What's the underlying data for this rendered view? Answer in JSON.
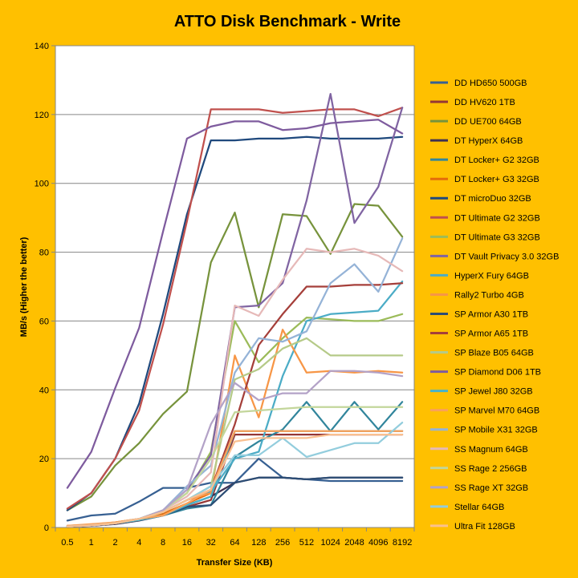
{
  "chart_data": {
    "type": "line",
    "title": "ATTO Disk Benchmark - Write",
    "xlabel": "Transfer Size (KB)",
    "ylabel": "MB/s (Higher the better)",
    "ylim": [
      0,
      140
    ],
    "yticks": [
      0,
      20,
      40,
      60,
      80,
      100,
      120,
      140
    ],
    "grid": true,
    "legend_position": "right",
    "background_color": "#FFC000",
    "plot_background_color": "#FFFFFF",
    "categories": [
      "0.5",
      "1",
      "2",
      "4",
      "8",
      "16",
      "32",
      "64",
      "128",
      "256",
      "512",
      "1024",
      "2048",
      "4096",
      "8192"
    ],
    "series": [
      {
        "name": "DD HD650 500GB",
        "color": "#376092",
        "values": [
          2,
          3.5,
          4,
          7.5,
          11.5,
          11.5,
          13,
          13,
          20,
          14.5,
          14,
          13.5,
          13.5,
          13.5,
          13.5
        ]
      },
      {
        "name": "DD HV620 1TB",
        "color": "#953735",
        "values": [
          0.3,
          0.6,
          1.2,
          2.2,
          3.6,
          6,
          8,
          27,
          27,
          27,
          27,
          27,
          27,
          27,
          27
        ]
      },
      {
        "name": "DD UE700 64GB",
        "color": "#77933C",
        "values": [
          5,
          9,
          18,
          24.5,
          33,
          39.5,
          77,
          91.5,
          64,
          91,
          90.5,
          79.5,
          94,
          93.5,
          84.5
        ]
      },
      {
        "name": "DT HyperX 64GB",
        "color": "#3F3151",
        "values": [
          0.2,
          0.5,
          1,
          2,
          3.5,
          6.5,
          9,
          13,
          14.5,
          14.5,
          14,
          14.5,
          14.5,
          14.5,
          14.5
        ]
      },
      {
        "name": "DT Locker+ G2 32GB",
        "color": "#31859C",
        "values": [
          0.3,
          0.6,
          1.2,
          2.2,
          3.5,
          5.5,
          6.5,
          20.5,
          25,
          28.5,
          36.5,
          28,
          36.5,
          28.5,
          36.5
        ]
      },
      {
        "name": "DT Locker+ G3 32GB",
        "color": "#E46C0A",
        "values": [
          0.5,
          0.8,
          1.5,
          2.5,
          4,
          7,
          10,
          28,
          28,
          28,
          28,
          28,
          28,
          28,
          28
        ]
      },
      {
        "name": "DT microDuo 32GB",
        "color": "#1F497D",
        "values": [
          5,
          10,
          20,
          36,
          62,
          91,
          112.5,
          112.5,
          113,
          113,
          113.5,
          113,
          113,
          113,
          113.5
        ]
      },
      {
        "name": "DT Ultimate G2 32GB",
        "color": "#C0504D",
        "values": [
          5.5,
          10,
          20,
          34,
          59,
          89,
          121.5,
          121.5,
          121.5,
          120.5,
          121,
          121.5,
          121.5,
          119.5,
          122
        ]
      },
      {
        "name": "DT Ultimate G3 32GB",
        "color": "#9BBB59",
        "values": [
          0.3,
          0.6,
          1.2,
          2.5,
          5,
          10,
          22,
          60,
          48,
          55,
          61,
          60.5,
          60,
          60,
          62
        ]
      },
      {
        "name": "DT Vault Privacy 3.0 32GB",
        "color": "#8064A2",
        "values": [
          0.3,
          0.6,
          1.2,
          2.5,
          5,
          11,
          21,
          64,
          64.5,
          71,
          95,
          126,
          88.5,
          99,
          122
        ]
      },
      {
        "name": "HyperX Fury 64GB",
        "color": "#4BACC6",
        "values": [
          0.3,
          0.6,
          1.2,
          2.5,
          4.5,
          8,
          10.5,
          20,
          22,
          44,
          60,
          62,
          62.5,
          63,
          71.5
        ]
      },
      {
        "name": "Rally2 Turbo 4GB",
        "color": "#F79646",
        "values": [
          0.5,
          0.8,
          1.5,
          2.5,
          4.5,
          8,
          10,
          50,
          32,
          57.5,
          45,
          45.5,
          45,
          45.5,
          45
        ]
      },
      {
        "name": "SP Armor A30 1TB",
        "color": "#2C4D75",
        "values": [
          0.3,
          0.6,
          1.2,
          2.2,
          3.5,
          6,
          6.5,
          13,
          14.5,
          14.5,
          14,
          14.5,
          14.5,
          14.5,
          14.5
        ]
      },
      {
        "name": "SP Armor A65 1TB",
        "color": "#A53F3A",
        "values": [
          0.3,
          0.6,
          1.2,
          2.5,
          4.5,
          8,
          11,
          30,
          53,
          62,
          70,
          70,
          70.5,
          70.5,
          71
        ]
      },
      {
        "name": "SP Blaze B05 64GB",
        "color": "#B5CA88",
        "values": [
          0.3,
          0.6,
          1.2,
          2.2,
          4.5,
          8,
          12,
          43,
          46,
          52,
          55,
          50,
          50,
          50,
          50
        ]
      },
      {
        "name": "SP Diamond D06 1TB",
        "color": "#7E5B9E",
        "values": [
          11.5,
          22,
          40.5,
          58,
          86,
          113,
          116.5,
          118,
          118,
          115.5,
          116,
          117.5,
          118,
          118.5,
          114.5
        ]
      },
      {
        "name": "SP Jewel J80 32GB",
        "color": "#48B2C9",
        "values": [
          0.3,
          0.6,
          1.2,
          2.2,
          3.5,
          6.5,
          9,
          28,
          28,
          28,
          28,
          28,
          28,
          28,
          28
        ]
      },
      {
        "name": "SP Marvel M70 64GB",
        "color": "#F9A15A",
        "values": [
          0.5,
          1,
          1.5,
          2.5,
          3.5,
          7,
          11,
          28,
          28,
          28,
          28,
          28,
          28,
          28,
          28
        ]
      },
      {
        "name": "SP Mobile X31 32GB",
        "color": "#95B3D7",
        "values": [
          0.3,
          0.6,
          1.2,
          2.5,
          5,
          12,
          18,
          45,
          55,
          54,
          57,
          71,
          76.5,
          68.5,
          84
        ]
      },
      {
        "name": "SS Magnum 64GB",
        "color": "#E6B9B8",
        "values": [
          0.3,
          0.6,
          1.2,
          2.5,
          5,
          9,
          16,
          64.5,
          61.5,
          72,
          81,
          80,
          81,
          79,
          74.5
        ]
      },
      {
        "name": "SS Rage 2 256GB",
        "color": "#C3D69B",
        "values": [
          0.3,
          0.6,
          1.2,
          2.5,
          5,
          10,
          20,
          33.5,
          34,
          34.5,
          35,
          35,
          35,
          35,
          35
        ]
      },
      {
        "name": "SS Rage XT 32GB",
        "color": "#B3A2C7",
        "values": [
          0.3,
          0.6,
          1.2,
          2.5,
          5,
          11,
          30,
          42,
          37,
          39,
          39,
          45.5,
          45.5,
          45,
          44
        ]
      },
      {
        "name": "Stellar 64GB",
        "color": "#93CDDD",
        "values": [
          0.3,
          0.6,
          1.2,
          2.5,
          4.5,
          8,
          12,
          21,
          21,
          26,
          20.5,
          22.5,
          24.5,
          24.5,
          30.5
        ]
      },
      {
        "name": "Ultra Fit 128GB",
        "color": "#FAC090",
        "values": [
          0.3,
          0.6,
          1.2,
          2.5,
          4.5,
          8,
          11,
          25,
          26,
          26,
          26,
          27,
          27,
          27,
          27
        ]
      }
    ]
  }
}
